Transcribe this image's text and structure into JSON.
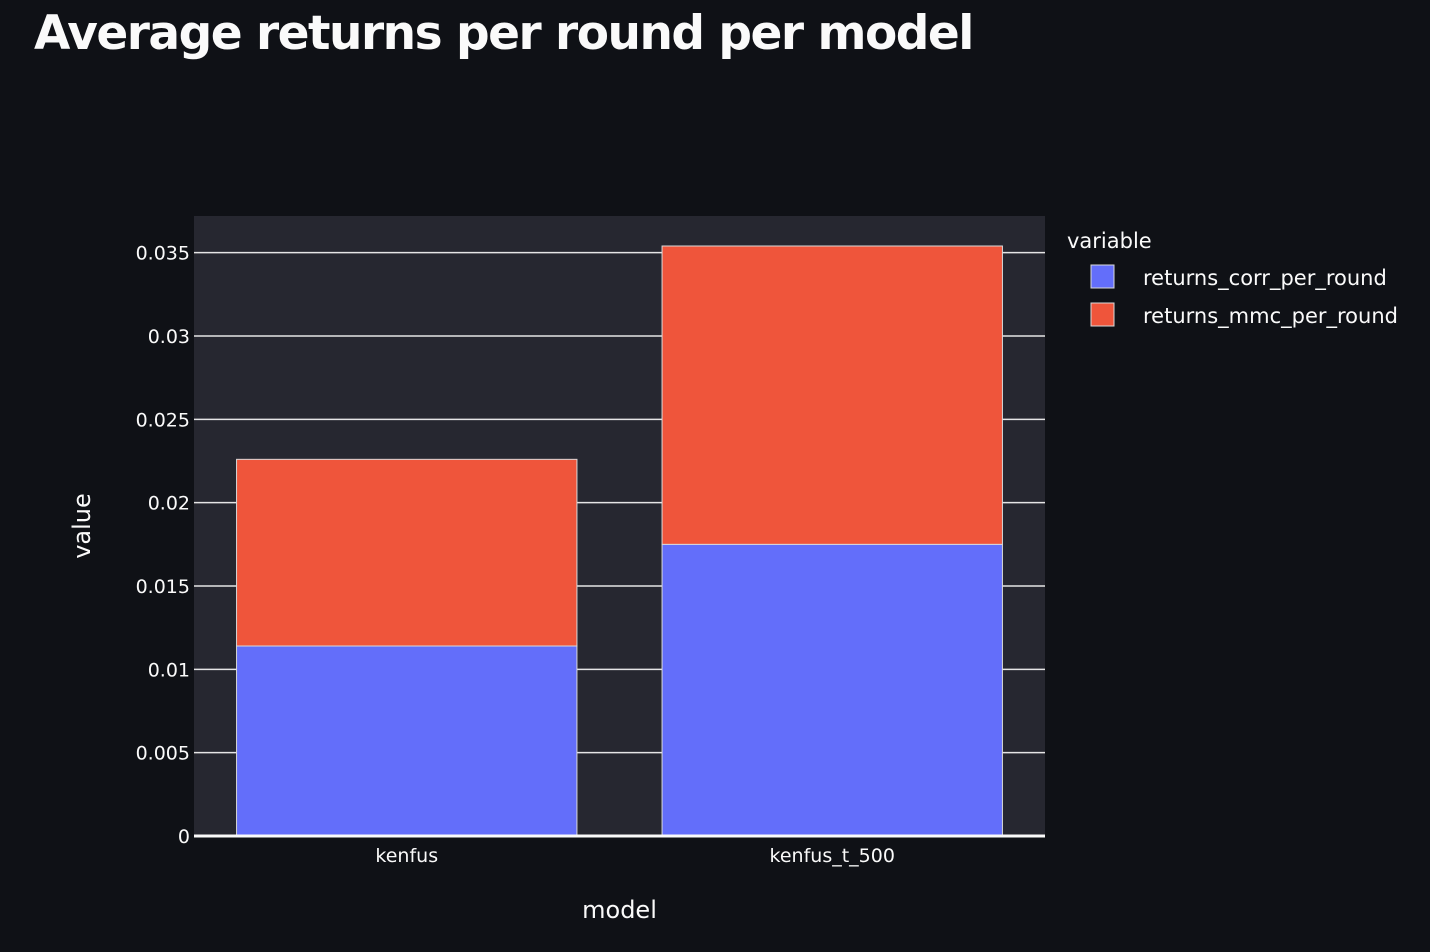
{
  "page": {
    "title": "Average returns per round per model"
  },
  "colors": {
    "background": "#0f1116",
    "plot_background": "#262730",
    "gridline": "#fafafa",
    "text": "#fafafa",
    "bar_outline": "#d9d9d9"
  },
  "chart_data": {
    "type": "bar",
    "barmode": "stack",
    "title": "",
    "xlabel": "model",
    "ylabel": "value",
    "categories": [
      "kenfus",
      "kenfus_t_500"
    ],
    "series": [
      {
        "name": "returns_corr_per_round",
        "color": "#636efa",
        "values": [
          0.0114,
          0.0175
        ]
      },
      {
        "name": "returns_mmc_per_round",
        "color": "#ef553b",
        "values": [
          0.0112,
          0.0179
        ]
      }
    ],
    "ylim": [
      0,
      0.0372
    ],
    "yticks": [
      0,
      0.005,
      0.01,
      0.015,
      0.02,
      0.025,
      0.03,
      0.035
    ],
    "ytick_labels": [
      "0",
      "0.005",
      "0.01",
      "0.015",
      "0.02",
      "0.025",
      "0.03",
      "0.035"
    ],
    "grid": true,
    "legend": {
      "title": "variable",
      "placement": "right"
    }
  }
}
